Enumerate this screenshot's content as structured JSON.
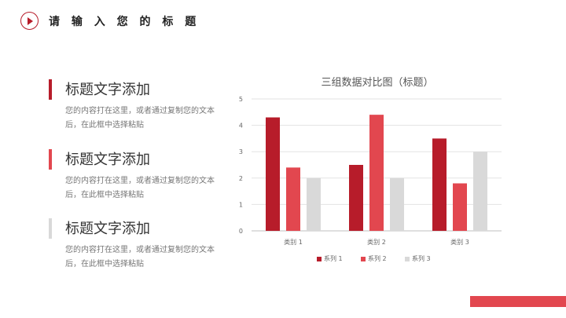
{
  "header": {
    "title": "请 输 入 您 的 标 题",
    "logo_icon": "play-circle-icon"
  },
  "items": [
    {
      "heading": "标题文字添加",
      "body": "您的内容打在这里，或者通过复制您的文本后，在此框中选择粘贴",
      "accent": "#b71c2a"
    },
    {
      "heading": "标题文字添加",
      "body": "您的内容打在这里，或者通过复制您的文本后，在此框中选择粘贴",
      "accent": "#e2474f"
    },
    {
      "heading": "标题文字添加",
      "body": "您的内容打在这里，或者通过复制您的文本后，在此框中选择粘贴",
      "accent": "#d9d9d9"
    }
  ],
  "chart_data": {
    "type": "bar",
    "title": "三组数据对比图（标题）",
    "categories": [
      "类别 1",
      "类别 2",
      "类别 3"
    ],
    "series": [
      {
        "name": "系列 1",
        "values": [
          4.3,
          2.5,
          3.5
        ],
        "color": "#b71c2a"
      },
      {
        "name": "系列 2",
        "values": [
          2.4,
          4.4,
          1.8
        ],
        "color": "#e2474f"
      },
      {
        "name": "系列 3",
        "values": [
          2.0,
          2.0,
          3.0
        ],
        "color": "#d9d9d9"
      }
    ],
    "yticks": [
      "0",
      "1",
      "2",
      "3",
      "4",
      "5"
    ],
    "ylim": [
      0,
      5
    ],
    "grid": true,
    "legend_position": "bottom"
  },
  "colors": {
    "accent": "#b71c2a",
    "accent_light": "#e2474f",
    "neutral": "#d9d9d9"
  }
}
